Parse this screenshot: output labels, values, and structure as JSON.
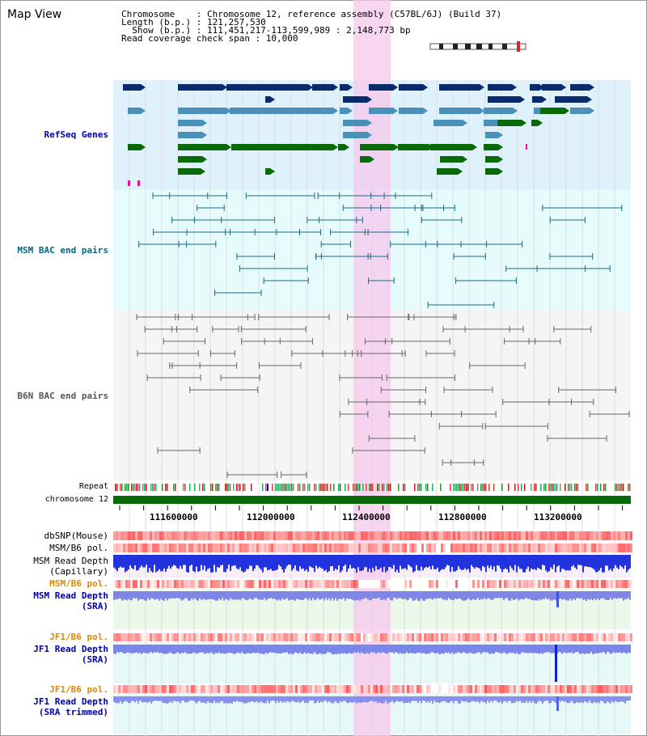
{
  "app": {
    "title": "Map View"
  },
  "header": {
    "line1": "Chromosome    : Chromosome 12, reference assembly (C57BL/6J) (Build 37)",
    "line2": "Length (b.p.) : 121,257,530",
    "line3": "  Show (b.p.) : 111,451,217-113,599,989 : 2,148,773 bp",
    "line4": "Read coverage check span : 10,000"
  },
  "tracks": {
    "refseq": {
      "label": "RefSeq Genes",
      "color": "#0000aa"
    },
    "msm_bac": {
      "label": "MSM BAC end pairs",
      "color": "#006688"
    },
    "b6n_bac": {
      "label": "B6N BAC end pairs",
      "color": "#555555"
    },
    "repeat": {
      "label": "Repeat"
    },
    "chromosome": {
      "label": "chromosome 12"
    },
    "dbsnp": {
      "label": "dbSNP(Mouse)"
    },
    "msm_b6_pol_1": {
      "label": "MSM/B6 pol."
    },
    "msm_read_cap_1": {
      "label": "MSM Read Depth"
    },
    "msm_read_cap_2": {
      "label": "(Capillary)"
    },
    "msm_b6_pol_2": {
      "label": "MSM/B6 pol.",
      "color": "#dd8800"
    },
    "msm_read_sra_1": {
      "label": "MSM Read Depth",
      "color": "#0000aa"
    },
    "msm_read_sra_2": {
      "label": "(SRA)",
      "color": "#0000aa"
    },
    "jf1_b6_pol_1": {
      "label": "JF1/B6 pol.",
      "color": "#dd8800"
    },
    "jf1_read_sra_1": {
      "label": "JF1 Read Depth",
      "color": "#0000aa"
    },
    "jf1_read_sra_2": {
      "label": "(SRA)",
      "color": "#0000aa"
    },
    "jf1_b6_pol_2": {
      "label": "JF1/B6 pol.",
      "color": "#dd8800"
    },
    "jf1_read_trim_1": {
      "label": "JF1 Read Depth",
      "color": "#0000aa"
    },
    "jf1_read_trim_2": {
      "label": "(SRA trimmed)",
      "color": "#0000aa"
    }
  },
  "axis": {
    "ticks": [
      "111600000",
      "112000000",
      "112400000",
      "112800000",
      "113200000"
    ]
  },
  "colors": {
    "refseq_dark": "#0a2a6e",
    "refseq_light": "#4a90b8",
    "refseq_green": "#0a6a0a",
    "highlight": "#f6c8ec",
    "refseq_bg": "#dff2fb",
    "msm_bg": "#e6fbfb",
    "b6n_bg": "#f5f5f5"
  }
}
